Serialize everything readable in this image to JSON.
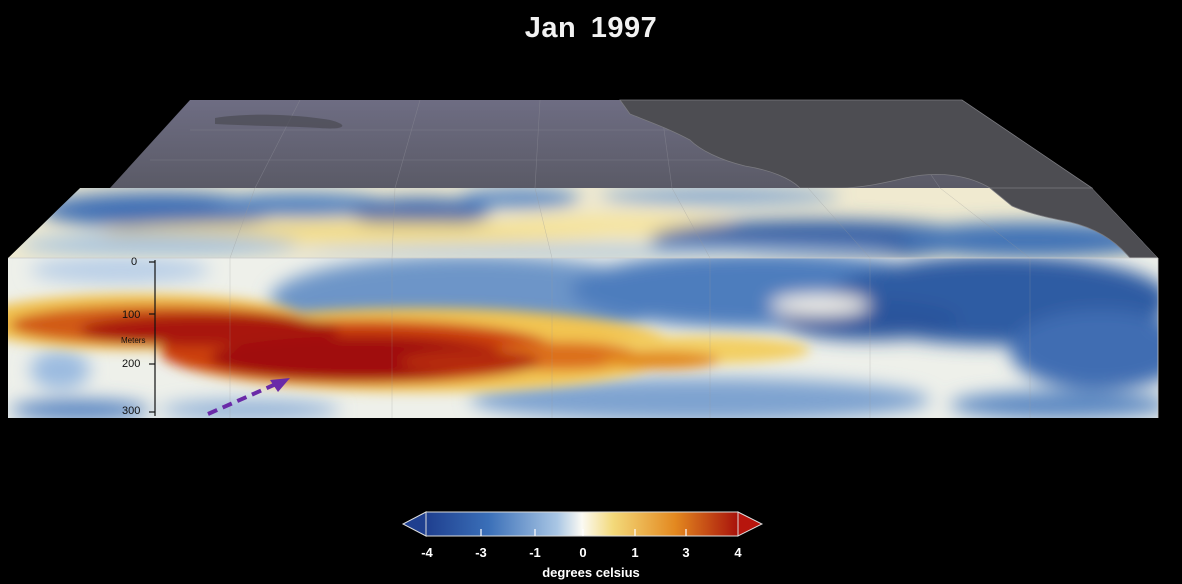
{
  "title": "Jan  1997",
  "depth_axis": {
    "unit": "Meters",
    "ticks": [
      "0",
      "100",
      "200",
      "300"
    ]
  },
  "colorbar": {
    "unit": "degrees celsius",
    "ticks": [
      "-4",
      "-3",
      "-1",
      "0",
      "1",
      "3",
      "4"
    ],
    "colors": [
      "#1f3f8f",
      "#3a6fb8",
      "#8fb6dc",
      "#f7f6ef",
      "#f3d97a",
      "#e3881f",
      "#a8120c"
    ]
  },
  "colors": {
    "background": "#000000",
    "land": "#5e5e66",
    "ocean_top": "#6b6a80",
    "arrow": "#6a2aa8"
  }
}
